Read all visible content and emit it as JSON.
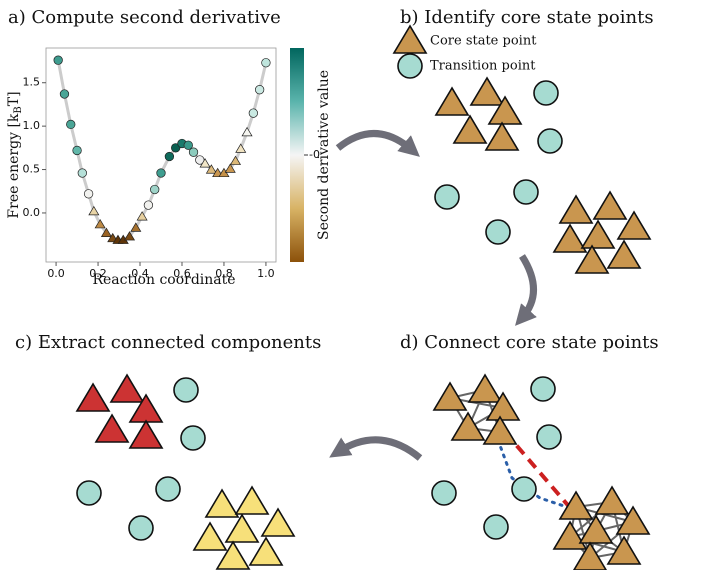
{
  "chart_data": {
    "type": "scatter",
    "title": "a) Compute second derivative",
    "xlabel": "Reaction coordinate",
    "ylabel": {
      "main": "Free energy [k",
      "sub": "B",
      "end": "T]"
    },
    "x": [
      0.01,
      0.04,
      0.07,
      0.1,
      0.125,
      0.155,
      0.18,
      0.21,
      0.24,
      0.27,
      0.295,
      0.32,
      0.35,
      0.38,
      0.41,
      0.44,
      0.47,
      0.5,
      0.54,
      0.57,
      0.6,
      0.63,
      0.655,
      0.685,
      0.71,
      0.74,
      0.77,
      0.8,
      0.83,
      0.855,
      0.88,
      0.91,
      0.94,
      0.97,
      1.0
    ],
    "values": [
      1.76,
      1.37,
      1.02,
      0.72,
      0.46,
      0.22,
      0.02,
      -0.13,
      -0.23,
      -0.29,
      -0.31,
      -0.31,
      -0.27,
      -0.17,
      -0.04,
      0.09,
      0.27,
      0.46,
      0.65,
      0.75,
      0.8,
      0.78,
      0.7,
      0.61,
      0.57,
      0.5,
      0.46,
      0.46,
      0.51,
      0.6,
      0.74,
      0.93,
      1.15,
      1.42,
      1.73
    ],
    "colors": [
      "#3e9c8f",
      "#4aa596",
      "#4aa596",
      "#62b7a9",
      "#b5e0d8",
      "#f2f2ef",
      "#e8d4a6",
      "#bd8a46",
      "#9a6324",
      "#7a4a14",
      "#5f3509",
      "#5f3509",
      "#7a4a14",
      "#a5712f",
      "#e6cf9f",
      "#f1f1ee",
      "#9ed3c8",
      "#3f9e90",
      "#0f6b5c",
      "#0a5f50",
      "#1b7a6b",
      "#3a9a8b",
      "#8ccbbd",
      "#eeeeee",
      "#f1e6c8",
      "#ddba7c",
      "#c9964f",
      "#c59148",
      "#c9964f",
      "#dcb877",
      "#f0e2c0",
      "#f5f5f0",
      "#c9e9e2",
      "#cbe9e3",
      "#bfe5dd"
    ],
    "markers": [
      "circle",
      "circle",
      "circle",
      "circle",
      "circle",
      "circle",
      "triangle",
      "triangle",
      "triangle",
      "triangle",
      "triangle",
      "triangle",
      "triangle",
      "triangle",
      "triangle",
      "circle",
      "circle",
      "circle",
      "circle",
      "circle",
      "circle",
      "circle",
      "circle",
      "circle",
      "triangle",
      "triangle",
      "triangle",
      "triangle",
      "triangle",
      "triangle",
      "triangle",
      "triangle",
      "circle",
      "circle",
      "circle"
    ],
    "line_color": "#cccccc",
    "xlim": [
      -0.048,
      1.048
    ],
    "ylim": [
      -0.565,
      1.9
    ],
    "xticks": [
      {
        "value": 0,
        "label": "0.0"
      },
      {
        "value": 0.2,
        "label": "0.2"
      },
      {
        "value": 0.4,
        "label": "0.4"
      },
      {
        "value": 0.6,
        "label": "0.6"
      },
      {
        "value": 0.8,
        "label": "0.8"
      },
      {
        "value": 1,
        "label": "1.0"
      }
    ],
    "yticks": [
      {
        "value": 0,
        "label": "0.0"
      },
      {
        "value": 0.5,
        "label": "0.5"
      },
      {
        "value": 1,
        "label": "1.0"
      },
      {
        "value": 1.5,
        "label": "1.5"
      }
    ],
    "colorbar": {
      "label": "Second derivative value",
      "lim": [
        -1,
        1
      ],
      "ticks": [
        {
          "value": 0,
          "label": "-0"
        }
      ]
    }
  },
  "panels": {
    "b": {
      "title": "b) Identify core state points",
      "legend": [
        "Core state point",
        "Transition point"
      ]
    },
    "c": {
      "title": "c) Extract connected components"
    },
    "d": {
      "title": "d) Connect core state points"
    }
  }
}
